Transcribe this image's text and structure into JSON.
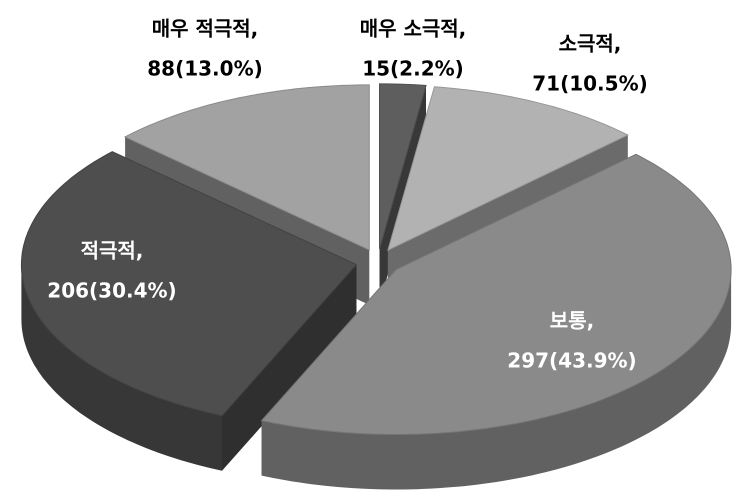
{
  "chart_data": {
    "type": "pie3d",
    "categories": [
      "매우 소극적,",
      "소극적,",
      "보통,",
      "적극적,",
      "매우 적극적,"
    ],
    "values": [
      15,
      71,
      297,
      206,
      88
    ],
    "value_labels": [
      "15(2.2%)",
      "71(10.5%)",
      "297(43.9%)",
      "206(30.4%)",
      "88(13.0%)"
    ],
    "colors": [
      "#5e5e5e",
      "#b2b2b2",
      "#8a8a8a",
      "#4e4e4e",
      "#a2a2a2"
    ]
  }
}
